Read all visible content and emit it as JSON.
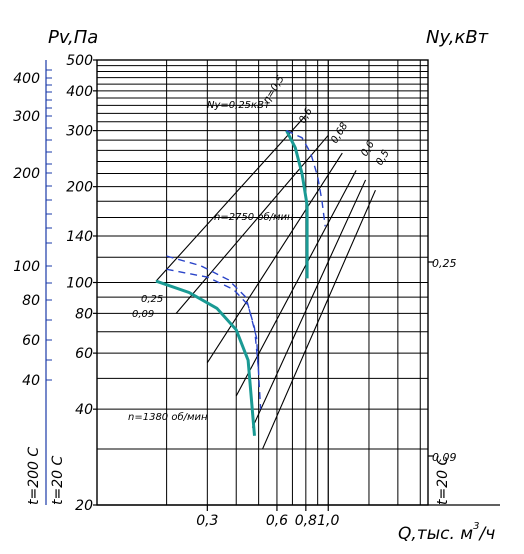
{
  "chart_data": {
    "type": "line",
    "title": "",
    "ylabel": "Pv,Па",
    "y2label": "Ny,кВт",
    "xlabel": "Q,тыс. м³/ч",
    "xlabel_parts": {
      "main": "Q,тыс. м",
      "sup": "3",
      "tail": "/ч"
    },
    "xscale": "log",
    "yscale": "log",
    "x_ticks": [
      {
        "value": 0.3,
        "label": "0,3"
      },
      {
        "value": 0.6,
        "label": "0,6"
      },
      {
        "value": 0.8,
        "label": "0,8"
      },
      {
        "value": 1.0,
        "label": "1,0"
      }
    ],
    "y_ticks": [
      {
        "value": 20,
        "label": "20"
      },
      {
        "value": 40,
        "label": "40"
      },
      {
        "value": 60,
        "label": "60"
      },
      {
        "value": 80,
        "label": "80"
      },
      {
        "value": 100,
        "label": "100"
      },
      {
        "value": 140,
        "label": "140"
      },
      {
        "value": 200,
        "label": "200"
      },
      {
        "value": 300,
        "label": "300"
      },
      {
        "value": 400,
        "label": "400"
      },
      {
        "value": 500,
        "label": "500"
      }
    ],
    "left_scale_200C": [
      {
        "label": "400"
      },
      {
        "label": "300"
      },
      {
        "label": "200"
      },
      {
        "label": "100"
      },
      {
        "label": "80"
      },
      {
        "label": "60"
      },
      {
        "label": "40"
      }
    ],
    "temperature_labels": {
      "t200": "t=200 С",
      "t20": "t=20 С",
      "right_t20": "t=20 С"
    },
    "power_ticks": [
      {
        "label": "0,25"
      },
      {
        "label": "0,09"
      }
    ],
    "speed_labels": {
      "high": "n=2750 об/мин",
      "low": "n=1380 об/мин"
    },
    "efficiency_labels": [
      "η=0,5",
      "0,6",
      "0,68",
      "0,6",
      "0,5"
    ],
    "power_curve_labels": {
      "high": "Ny=0,25кВт",
      "low_a": "0,25",
      "low_b": "0,09"
    },
    "series": [
      {
        "key": "pressure_2750",
        "color": "#1a9a94",
        "x": [
          0.66,
          0.72,
          0.77,
          0.81,
          0.81
        ],
        "y": [
          300,
          265,
          220,
          175,
          103
        ]
      },
      {
        "key": "pressure_1380",
        "color": "#1a9a94",
        "x": [
          0.18,
          0.25,
          0.33,
          0.4,
          0.45,
          0.48
        ],
        "y": [
          101,
          93,
          83,
          71,
          57,
          33
        ]
      },
      {
        "key": "power_2750",
        "color": "#2a44c8",
        "x": [
          0.66,
          0.77,
          0.84,
          0.9,
          0.94,
          0.97
        ],
        "y": [
          300,
          285,
          255,
          215,
          180,
          150
        ]
      },
      {
        "key": "power_1380_a",
        "color": "#2a44c8",
        "x": [
          0.2,
          0.28,
          0.37,
          0.44,
          0.48,
          0.5
        ],
        "y": [
          121,
          113,
          102,
          90,
          72,
          53
        ]
      },
      {
        "key": "power_1380_b",
        "color": "#2a44c8",
        "x": [
          0.2,
          0.3,
          0.39,
          0.45,
          0.49,
          0.51
        ],
        "y": [
          110,
          104,
          95,
          85,
          67,
          40
        ]
      }
    ],
    "grid": true
  }
}
